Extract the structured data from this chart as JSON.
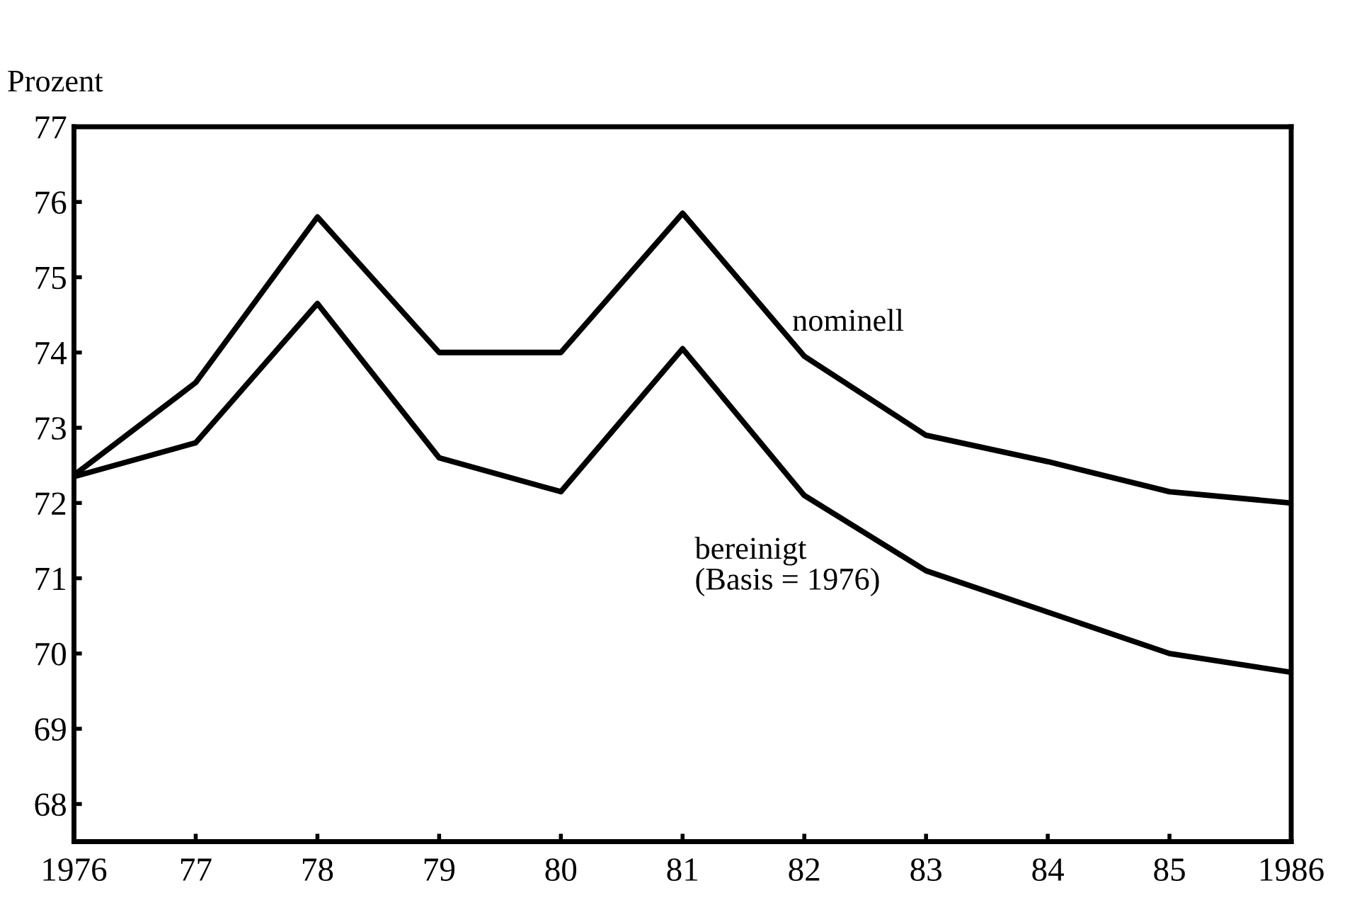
{
  "chart_data": {
    "type": "line",
    "ylabel": "Prozent",
    "x": [
      1976,
      1977,
      1978,
      1979,
      1980,
      1981,
      1982,
      1983,
      1984,
      1985,
      1986
    ],
    "series": [
      {
        "name": "nominell",
        "color": "#000000",
        "values": [
          72.37,
          73.6,
          75.8,
          74.0,
          74.0,
          75.85,
          73.95,
          72.9,
          72.55,
          72.15,
          72.0
        ]
      },
      {
        "name": "bereinigt\n(Basis = 1976)",
        "color": "#000000",
        "values": [
          72.35,
          72.8,
          74.65,
          72.6,
          72.15,
          74.05,
          72.1,
          71.1,
          70.55,
          70.0,
          69.75
        ]
      }
    ],
    "xlim": [
      1976,
      1986
    ],
    "ylim": [
      67.5,
      77
    ],
    "xticks": [
      1976,
      {
        "value": 1977,
        "label": "77"
      },
      {
        "value": 1978,
        "label": "78"
      },
      {
        "value": 1979,
        "label": "79"
      },
      {
        "value": 1980,
        "label": "80"
      },
      {
        "value": 1981,
        "label": "81"
      },
      {
        "value": 1982,
        "label": "82"
      },
      {
        "value": 1983,
        "label": "83"
      },
      {
        "value": 1984,
        "label": "84"
      },
      {
        "value": 1985,
        "label": "85"
      },
      1986
    ],
    "yticks": [
      68,
      69,
      70,
      71,
      72,
      73,
      74,
      75,
      76,
      77
    ],
    "grid": false,
    "legend": false,
    "marker": "none",
    "line_style": "solid"
  }
}
